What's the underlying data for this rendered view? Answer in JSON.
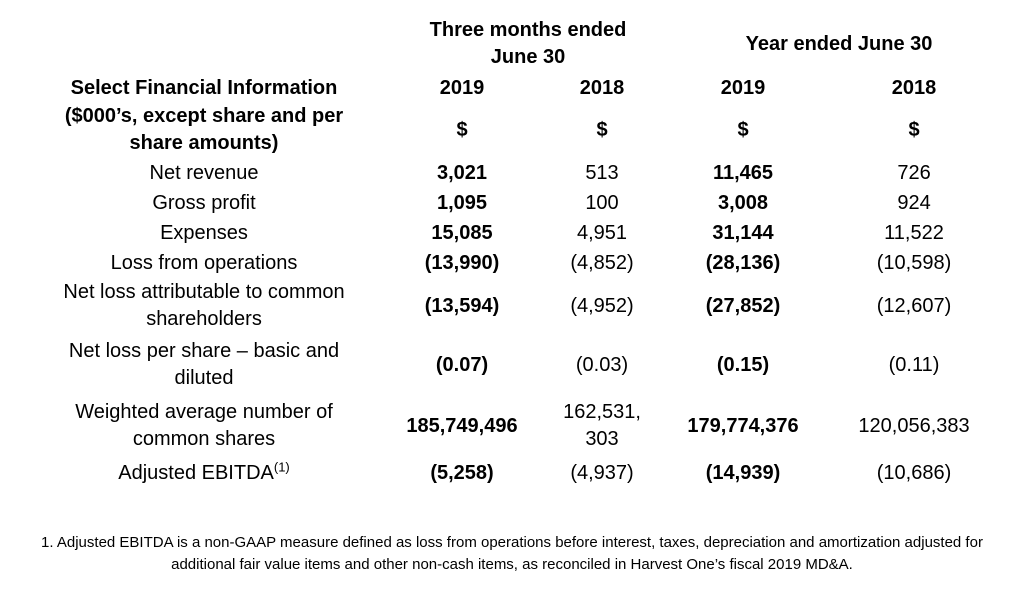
{
  "table": {
    "groups": {
      "three_months": "Three months ended\nJune 30",
      "year": "Year ended June 30"
    },
    "header": {
      "label_title": "Select Financial Information",
      "label_subtitle": "($000’s, except share and per\nshare amounts)",
      "years": [
        "2019",
        "2018",
        "2019",
        "2018"
      ],
      "currency": [
        "$",
        "$",
        "$",
        "$"
      ]
    },
    "rows": [
      {
        "label": "Net revenue",
        "values": [
          "3,021",
          "513",
          "11,465",
          "726"
        ]
      },
      {
        "label": "Gross profit",
        "values": [
          "1,095",
          "100",
          "3,008",
          "924"
        ]
      },
      {
        "label": "Expenses",
        "values": [
          "15,085",
          "4,951",
          "31,144",
          "11,522"
        ]
      },
      {
        "label": "Loss from operations",
        "values": [
          "(13,990)",
          "(4,852)",
          "(28,136)",
          "(10,598)"
        ]
      },
      {
        "label": "Net loss attributable to common\nshareholders",
        "values": [
          "(13,594)",
          "(4,952)",
          "(27,852)",
          "(12,607)"
        ]
      },
      {
        "label": "Net loss per share – basic and\ndiluted",
        "values": [
          "(0.07)",
          "(0.03)",
          "(0.15)",
          "(0.11)"
        ]
      },
      {
        "label": "Weighted average number of\ncommon shares",
        "values": [
          "185,749,496",
          "162,531,\n303",
          "179,774,376",
          "120,056,383"
        ]
      },
      {
        "label": "Adjusted EBITDA",
        "sup": "(1)",
        "values": [
          "(5,258)",
          "(4,937)",
          "(14,939)",
          "(10,686)"
        ]
      }
    ]
  },
  "footnote": "1. Adjusted EBITDA is a non-GAAP measure defined as loss from operations before interest, taxes, depreciation and amortization adjusted for additional fair value items and other non-cash items, as reconciled in Harvest One’s fiscal 2019 MD&A."
}
